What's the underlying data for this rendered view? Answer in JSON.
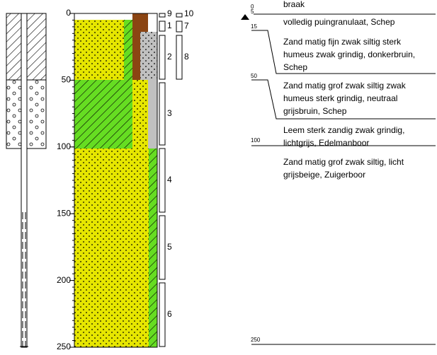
{
  "depth_axis": {
    "ticks": [
      0,
      50,
      100,
      150,
      200,
      250
    ]
  },
  "samples": [
    "9",
    "10",
    "1",
    "7",
    "2",
    "8",
    "3",
    "4",
    "5",
    "6"
  ],
  "layers": [
    {
      "depth": 0,
      "lines": [
        "braak"
      ]
    },
    {
      "depth": 5,
      "lines": [
        "volledig  puingranulaat,  Schep"
      ]
    },
    {
      "depth": 15,
      "lines": [
        "Zand matig fijn zwak siltig sterk",
        "humeus zwak grindig, donkerbruin,",
        "Schep"
      ]
    },
    {
      "depth": 50,
      "lines": [
        "Zand matig grof zwak siltig zwak",
        "humeus sterk grindig, neutraal",
        "grijsbruin,  Schep"
      ]
    },
    {
      "depth": 100,
      "lines": [
        "Leem sterk zandig zwak grindig,",
        "lichtgrijs,   Edelmanboor"
      ]
    },
    {
      "depth": null,
      "lines": [
        "Zand matig grof zwak siltig, licht",
        "grijsbeige,  Zuigerboor"
      ]
    }
  ],
  "end_depth": 250
}
